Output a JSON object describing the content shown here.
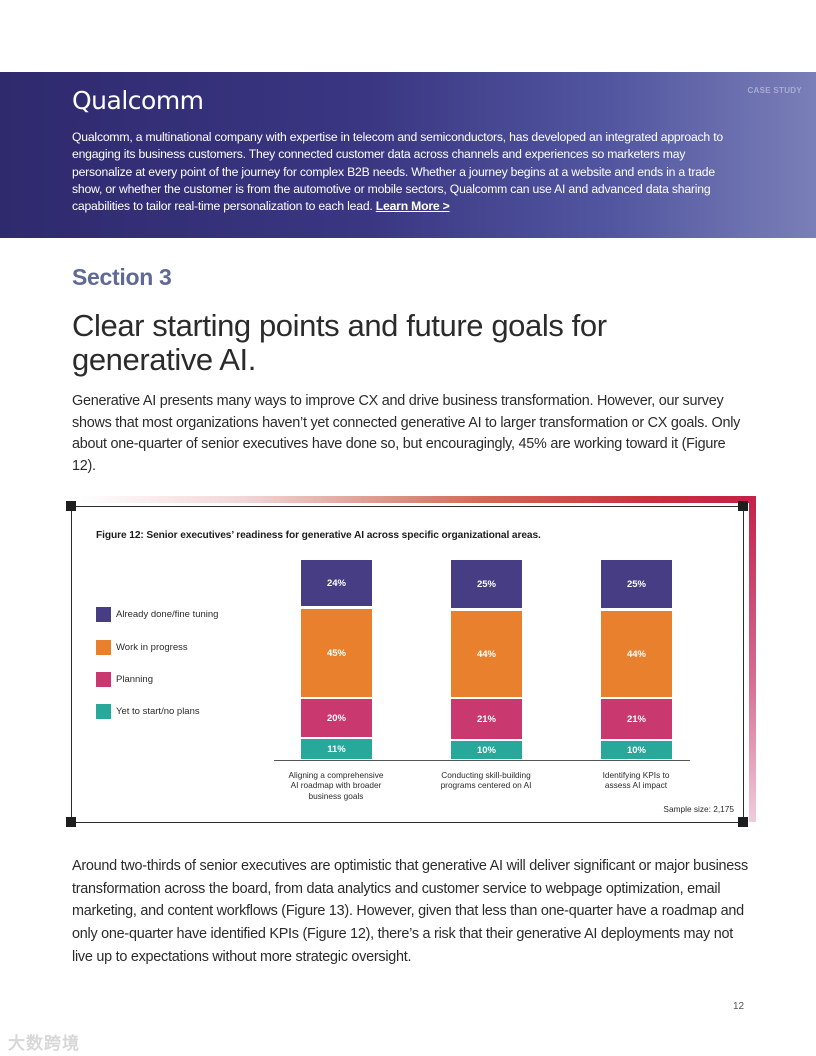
{
  "banner": {
    "logo": "Qualcomm",
    "tag": "CASE STUDY",
    "text": "Qualcomm, a multinational company with expertise in telecom and semiconductors, has developed an integrated approach to engaging its business customers. They connected customer data across channels and experiences so marketers may personalize at every point of the journey for complex B2B needs. Whether a journey begins at a website and ends in a trade show, or whether the customer is from the automotive or mobile sectors, Qualcomm can use AI and advanced data sharing capabilities to tailor real-time personalization to each lead.",
    "link": "Learn More >"
  },
  "section_label": "Section 3",
  "headline": "Clear starting points and future goals for generative AI.",
  "intro": "Generative AI presents many ways to improve CX and drive business transformation. However, our survey shows that most organizations haven’t yet connected generative AI to larger transformation or CX goals. Only about one-quarter of senior executives have done so, but encouragingly, 45% are working toward it (Figure 12).",
  "figure": {
    "title": "Figure 12: Senior executives’ readiness for generative AI across specific organizational areas.",
    "sample": "Sample size: 2,175"
  },
  "chart_data": {
    "type": "bar",
    "stacked": true,
    "title": "Figure 12: Senior executives’ readiness for generative AI across specific organizational areas.",
    "categories": [
      "Aligning a comprehensive AI roadmap with broader business goals",
      "Conducting skill-building programs centered on AI",
      "Identifying KPIs to assess AI impact"
    ],
    "category_lines": [
      [
        "Aligning a comprehensive",
        "AI roadmap with broader",
        "business goals"
      ],
      [
        "Conducting skill-building",
        "programs centered on AI"
      ],
      [
        "Identifying KPIs to",
        "assess AI impact"
      ]
    ],
    "series": [
      {
        "name": "Yet to start/no plans",
        "color": "#27a89a",
        "values": [
          11,
          10,
          10
        ],
        "labels": [
          "11%",
          "10%",
          "10%"
        ]
      },
      {
        "name": "Planning",
        "color": "#c9386e",
        "values": [
          20,
          21,
          21
        ],
        "labels": [
          "20%",
          "21%",
          "21%"
        ]
      },
      {
        "name": "Work in progress",
        "color": "#e8802e",
        "values": [
          45,
          44,
          44
        ],
        "labels": [
          "45%",
          "44%",
          "44%"
        ]
      },
      {
        "name": "Already done/fine tuning",
        "color": "#473d85",
        "values": [
          24,
          25,
          25
        ],
        "labels": [
          "24%",
          "25%",
          "25%"
        ]
      }
    ],
    "legend_order": [
      "Already done/fine tuning",
      "Work in progress",
      "Planning",
      "Yet to start/no plans"
    ],
    "legend_position": "left",
    "ylim": [
      0,
      100
    ],
    "grid": false
  },
  "body2": "Around two-thirds of senior executives are optimistic that generative AI will deliver significant or major business transformation across the board, from data analytics and customer service to webpage optimization, email marketing, and content workflows (Figure 13). However, given that less than one-quarter have a roadmap and only one-quarter have identified KPIs (Figure 12), there’s a risk that their generative AI deployments may not live up to expectations without more strategic oversight.",
  "page_number": "12",
  "watermark": "大数跨境"
}
